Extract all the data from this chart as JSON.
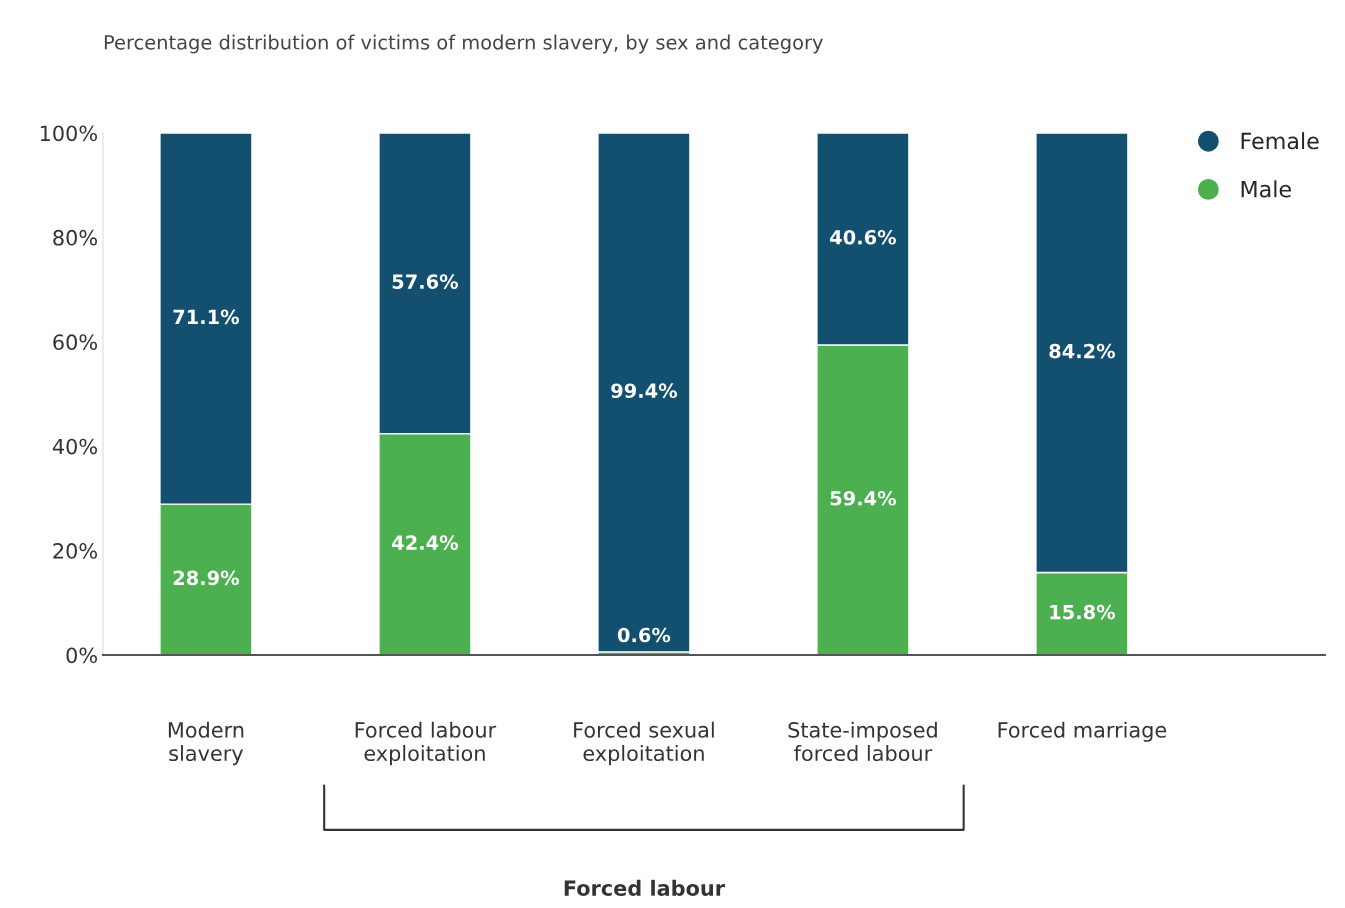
{
  "chart_data": {
    "type": "bar",
    "stacked": true,
    "title": "Percentage distribution of victims of modern slavery, by sex and category",
    "categories": [
      "Modern\nslavery",
      "Forced labour\nexploitation",
      "Forced sexual\nexploitation",
      "State-imposed\nforced labour",
      "Forced marriage"
    ],
    "series": [
      {
        "name": "Male",
        "color": "#4caf50",
        "values": [
          28.9,
          42.4,
          0.6,
          59.4,
          15.8
        ],
        "value_labels": [
          "28.9%",
          "42.4%",
          "0.6%",
          "59.4%",
          "15.8%"
        ]
      },
      {
        "name": "Female",
        "color": "#13506f",
        "values": [
          71.1,
          57.6,
          99.4,
          40.6,
          84.2
        ],
        "value_labels": [
          "71.1%",
          "57.6%",
          "99.4%",
          "40.6%",
          "84.2%"
        ]
      }
    ],
    "ylim": [
      0,
      100
    ],
    "yticks": [
      {
        "value": 0,
        "label": "0%"
      },
      {
        "value": 20,
        "label": "20%"
      },
      {
        "value": 40,
        "label": "40%"
      },
      {
        "value": 60,
        "label": "60%"
      },
      {
        "value": 80,
        "label": "80%"
      },
      {
        "value": 100,
        "label": "100%"
      }
    ],
    "grid": false,
    "legend": "top right",
    "annotations": [
      "Forced labour"
    ]
  }
}
